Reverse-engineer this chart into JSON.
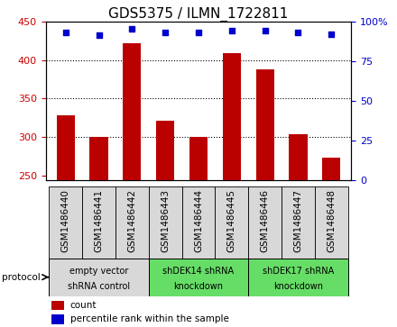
{
  "title": "GDS5375 / ILMN_1722811",
  "samples": [
    "GSM1486440",
    "GSM1486441",
    "GSM1486442",
    "GSM1486443",
    "GSM1486444",
    "GSM1486445",
    "GSM1486446",
    "GSM1486447",
    "GSM1486448"
  ],
  "counts": [
    328,
    300,
    422,
    322,
    301,
    409,
    388,
    304,
    274
  ],
  "percentiles": [
    93,
    91,
    95,
    93,
    93,
    94,
    94,
    93,
    92
  ],
  "ylim_left": [
    245,
    450
  ],
  "ylim_right": [
    0,
    100
  ],
  "yticks_left": [
    250,
    300,
    350,
    400,
    450
  ],
  "yticks_right": [
    0,
    25,
    50,
    75,
    100
  ],
  "bar_color": "#BB0000",
  "dot_color": "#0000CC",
  "groups": [
    {
      "label": "empty vector\nshRNA control",
      "indices": [
        0,
        1,
        2
      ],
      "bg": "#D8D8D8"
    },
    {
      "label": "shDEK14 shRNA\nknockdown",
      "indices": [
        3,
        4,
        5
      ],
      "bg": "#66DD66"
    },
    {
      "label": "shDEK17 shRNA\nknockdown",
      "indices": [
        6,
        7,
        8
      ],
      "bg": "#66DD66"
    }
  ],
  "protocol_label": "protocol",
  "legend_count_label": "count",
  "legend_pct_label": "percentile rank within the sample",
  "background_color": "#FFFFFF",
  "tick_label_color_left": "#CC0000",
  "tick_label_color_right": "#0000CC",
  "title_fontsize": 11,
  "axis_fontsize": 8,
  "sample_fontsize": 7.5
}
